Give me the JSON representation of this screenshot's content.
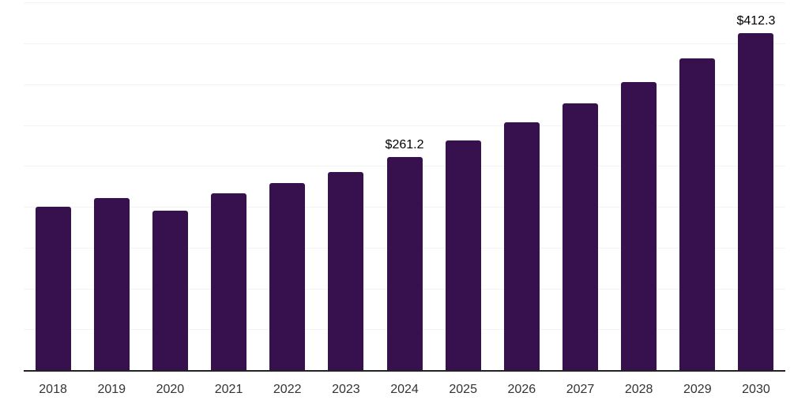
{
  "chart_data": {
    "type": "bar",
    "title": "",
    "xlabel": "",
    "ylabel": "",
    "categories": [
      "2018",
      "2019",
      "2020",
      "2021",
      "2022",
      "2023",
      "2024",
      "2025",
      "2026",
      "2027",
      "2028",
      "2029",
      "2030"
    ],
    "values": [
      200,
      211,
      195,
      216,
      229,
      243,
      261.2,
      281,
      303,
      327,
      353,
      382,
      412.3
    ],
    "data_labels": [
      null,
      null,
      null,
      null,
      null,
      null,
      "$261.2",
      null,
      null,
      null,
      null,
      null,
      "$412.3"
    ],
    "ylim": [
      0,
      450
    ],
    "gridline_interval": 50,
    "grid": true,
    "y_tick_labels_visible": false,
    "legend_position": "none",
    "colors": {
      "bar": "#36114D",
      "axis_line": "#222222",
      "gridline": "#f3f3f3",
      "x_tick_label": "#333333",
      "data_label": "#000000",
      "background": "#ffffff"
    }
  }
}
